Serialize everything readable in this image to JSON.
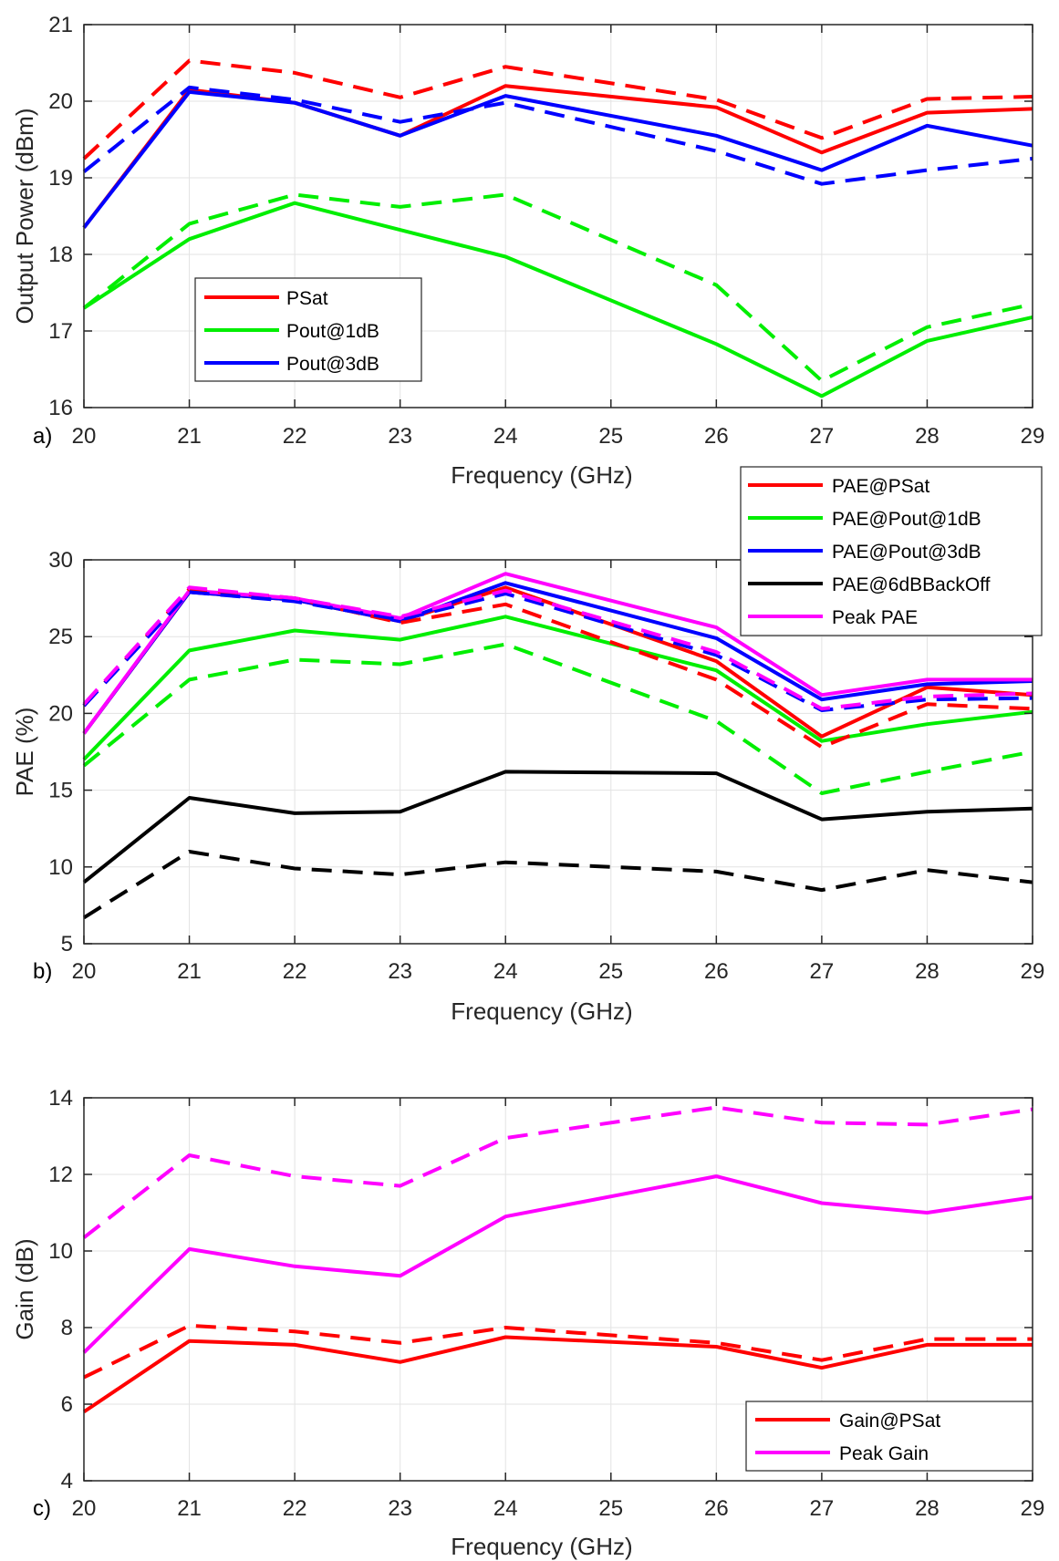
{
  "chart_data": [
    {
      "type": "line",
      "panel_label": "a)",
      "xlabel": "Frequency (GHz)",
      "ylabel": "Output Power (dBm)",
      "x": [
        20,
        21,
        22,
        23,
        24,
        25,
        26,
        27,
        28,
        29
      ],
      "xlim": [
        20,
        29
      ],
      "ylim": [
        16,
        21
      ],
      "xticks": [
        "20",
        "21",
        "22",
        "23",
        "24",
        "25",
        "26",
        "27",
        "28",
        "29"
      ],
      "yticks": [
        "16",
        "17",
        "18",
        "19",
        "20",
        "21"
      ],
      "grid": true,
      "legend_location": "lower-left",
      "colors": {
        "red": "#ff0000",
        "green": "#00ee00",
        "blue": "#0000ff",
        "black": "#000000",
        "magenta": "#ff00ff"
      },
      "series": [
        {
          "name": "PSat",
          "color": "red",
          "style": "solid",
          "in_legend": true,
          "x": [
            20,
            21,
            22,
            23,
            24,
            26,
            27,
            28,
            29
          ],
          "values": [
            18.35,
            20.15,
            19.98,
            19.55,
            20.2,
            19.92,
            19.33,
            19.85,
            19.9
          ]
        },
        {
          "name": "Pout@1dB",
          "color": "green",
          "style": "solid",
          "in_legend": true,
          "x": [
            20,
            21,
            22,
            24,
            26,
            27,
            28,
            29
          ],
          "values": [
            17.3,
            18.2,
            18.67,
            17.97,
            16.83,
            16.15,
            16.87,
            17.18
          ]
        },
        {
          "name": "Pout@3dB",
          "color": "blue",
          "style": "solid",
          "in_legend": true,
          "x": [
            20,
            21,
            22,
            23,
            24,
            26,
            27,
            28,
            29
          ],
          "values": [
            18.35,
            20.12,
            19.98,
            19.55,
            20.07,
            19.55,
            19.1,
            19.68,
            19.42
          ]
        },
        {
          "name": "PSat (dashed)",
          "color": "red",
          "style": "dashed",
          "in_legend": false,
          "x": [
            20,
            21,
            22,
            23,
            24,
            26,
            27,
            28,
            29
          ],
          "values": [
            19.25,
            20.53,
            20.37,
            20.05,
            20.45,
            20.02,
            19.52,
            20.03,
            20.06
          ]
        },
        {
          "name": "Pout@1dB (dashed)",
          "color": "green",
          "style": "dashed",
          "in_legend": false,
          "x": [
            20,
            21,
            22,
            23,
            24,
            26,
            27,
            28,
            29
          ],
          "values": [
            17.3,
            18.4,
            18.78,
            18.62,
            18.78,
            17.6,
            16.35,
            17.05,
            17.35
          ]
        },
        {
          "name": "Pout@3dB (dashed)",
          "color": "blue",
          "style": "dashed",
          "in_legend": false,
          "x": [
            20,
            21,
            22,
            23,
            24,
            26,
            27,
            28,
            29
          ],
          "values": [
            19.08,
            20.18,
            20.02,
            19.73,
            19.98,
            19.35,
            18.92,
            19.1,
            19.25
          ]
        }
      ]
    },
    {
      "type": "line",
      "panel_label": "b)",
      "xlabel": "Frequency (GHz)",
      "ylabel": "PAE (%)",
      "x": [
        20,
        21,
        22,
        23,
        24,
        25,
        26,
        27,
        28,
        29
      ],
      "xlim": [
        20,
        29
      ],
      "ylim": [
        5,
        30
      ],
      "xticks": [
        "20",
        "21",
        "22",
        "23",
        "24",
        "25",
        "26",
        "27",
        "28",
        "29"
      ],
      "yticks": [
        "5",
        "10",
        "15",
        "20",
        "25",
        "30"
      ],
      "grid": true,
      "legend_location": "outside-top-right",
      "colors": {
        "red": "#ff0000",
        "green": "#00ee00",
        "blue": "#0000ff",
        "black": "#000000",
        "magenta": "#ff00ff"
      },
      "series": [
        {
          "name": "PAE@PSat",
          "color": "red",
          "style": "solid",
          "in_legend": true,
          "x": [
            20,
            21,
            22,
            23,
            24,
            26,
            27,
            28,
            29
          ],
          "values": [
            18.7,
            27.9,
            27.4,
            26.0,
            28.2,
            23.4,
            18.5,
            21.7,
            21.2
          ]
        },
        {
          "name": "PAE@Pout@1dB",
          "color": "green",
          "style": "solid",
          "in_legend": true,
          "x": [
            20,
            21,
            22,
            23,
            24,
            26,
            27,
            28,
            29
          ],
          "values": [
            17.0,
            24.1,
            25.4,
            24.8,
            26.3,
            22.8,
            18.2,
            19.3,
            20.1
          ]
        },
        {
          "name": "PAE@Pout@3dB",
          "color": "blue",
          "style": "solid",
          "in_legend": true,
          "x": [
            20,
            21,
            22,
            23,
            24,
            26,
            27,
            28,
            29
          ],
          "values": [
            18.7,
            27.9,
            27.4,
            26.0,
            28.5,
            24.9,
            20.9,
            21.9,
            22.1
          ]
        },
        {
          "name": "PAE@6dBBackOff",
          "color": "black",
          "style": "solid",
          "in_legend": true,
          "x": [
            20,
            21,
            22,
            23,
            24,
            26,
            27,
            28,
            29
          ],
          "values": [
            9.0,
            14.5,
            13.5,
            13.6,
            16.2,
            16.1,
            13.1,
            13.6,
            13.8
          ]
        },
        {
          "name": "Peak PAE",
          "color": "magenta",
          "style": "solid",
          "in_legend": true,
          "x": [
            20,
            21,
            22,
            23,
            24,
            26,
            27,
            28,
            29
          ],
          "values": [
            18.7,
            28.0,
            27.5,
            26.2,
            29.1,
            25.6,
            21.2,
            22.2,
            22.2
          ]
        },
        {
          "name": "PAE@PSat (dashed)",
          "color": "red",
          "style": "dashed",
          "in_legend": false,
          "x": [
            20,
            21,
            22,
            23,
            24,
            26,
            27,
            28,
            29
          ],
          "values": [
            20.5,
            28.1,
            27.5,
            25.9,
            27.1,
            22.2,
            17.8,
            20.6,
            20.3
          ]
        },
        {
          "name": "PAE@Pout@1dB (dashed)",
          "color": "green",
          "style": "dashed",
          "in_legend": false,
          "x": [
            20,
            21,
            22,
            23,
            24,
            26,
            27,
            28,
            29
          ],
          "values": [
            16.6,
            22.2,
            23.5,
            23.2,
            24.5,
            19.5,
            14.8,
            16.2,
            17.5
          ]
        },
        {
          "name": "PAE@Pout@3dB (dashed)",
          "color": "blue",
          "style": "dashed",
          "in_legend": false,
          "x": [
            20,
            21,
            22,
            23,
            24,
            26,
            27,
            28,
            29
          ],
          "values": [
            20.5,
            27.9,
            27.3,
            26.1,
            27.8,
            23.8,
            20.2,
            20.9,
            21.0
          ]
        },
        {
          "name": "PAE@6dBBackOff (dashed)",
          "color": "black",
          "style": "dashed",
          "in_legend": false,
          "x": [
            20,
            21,
            22,
            23,
            24,
            26,
            27,
            28,
            29
          ],
          "values": [
            6.7,
            11.0,
            9.9,
            9.5,
            10.3,
            9.7,
            8.5,
            9.8,
            9.0
          ]
        },
        {
          "name": "Peak PAE (dashed)",
          "color": "magenta",
          "style": "dashed",
          "in_legend": false,
          "x": [
            20,
            21,
            22,
            23,
            24,
            26,
            27,
            28,
            29
          ],
          "values": [
            20.6,
            28.2,
            27.5,
            26.3,
            28.0,
            24.0,
            20.3,
            21.1,
            21.3
          ]
        }
      ]
    },
    {
      "type": "line",
      "panel_label": "c)",
      "xlabel": "Frequency (GHz)",
      "ylabel": "Gain (dB)",
      "x": [
        20,
        21,
        22,
        23,
        24,
        25,
        26,
        27,
        28,
        29
      ],
      "xlim": [
        20,
        29
      ],
      "ylim": [
        4,
        14
      ],
      "xticks": [
        "20",
        "21",
        "22",
        "23",
        "24",
        "25",
        "26",
        "27",
        "28",
        "29"
      ],
      "yticks": [
        "4",
        "6",
        "8",
        "10",
        "12",
        "14"
      ],
      "grid": true,
      "legend_location": "lower-right",
      "colors": {
        "red": "#ff0000",
        "green": "#00ee00",
        "blue": "#0000ff",
        "black": "#000000",
        "magenta": "#ff00ff"
      },
      "series": [
        {
          "name": "Gain@PSat",
          "color": "red",
          "style": "solid",
          "in_legend": true,
          "x": [
            20,
            21,
            22,
            23,
            24,
            26,
            27,
            28,
            29
          ],
          "values": [
            5.8,
            7.65,
            7.55,
            7.1,
            7.75,
            7.5,
            6.95,
            7.55,
            7.55
          ]
        },
        {
          "name": "Peak Gain",
          "color": "magenta",
          "style": "solid",
          "in_legend": true,
          "x": [
            20,
            21,
            22,
            23,
            24,
            26,
            27,
            28,
            29
          ],
          "values": [
            7.35,
            10.05,
            9.6,
            9.35,
            10.9,
            11.95,
            11.25,
            11.0,
            11.4
          ]
        },
        {
          "name": "Gain@PSat (dashed)",
          "color": "red",
          "style": "dashed",
          "in_legend": false,
          "x": [
            20,
            21,
            22,
            23,
            24,
            26,
            27,
            28,
            29
          ],
          "values": [
            6.7,
            8.05,
            7.9,
            7.6,
            8.0,
            7.6,
            7.15,
            7.7,
            7.7
          ]
        },
        {
          "name": "Peak Gain (dashed)",
          "color": "magenta",
          "style": "dashed",
          "in_legend": false,
          "x": [
            20,
            21,
            22,
            23,
            24,
            26,
            27,
            28,
            29
          ],
          "values": [
            10.35,
            12.5,
            11.95,
            11.7,
            12.95,
            13.75,
            13.35,
            13.3,
            13.7
          ]
        }
      ]
    }
  ]
}
